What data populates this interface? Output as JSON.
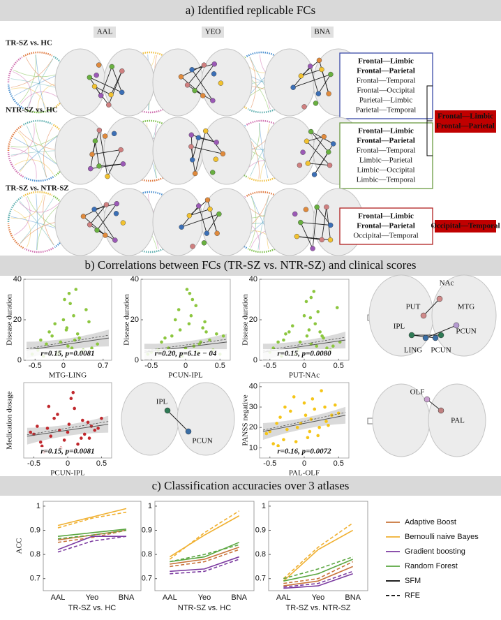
{
  "section_a": {
    "title": "a) Identified replicable FCs",
    "columns": [
      "AAL",
      "YEO",
      "BNA"
    ],
    "rows": [
      {
        "label": "TR-SZ vs. HC",
        "color": "#3a4aa8",
        "items": [
          {
            "text": "Frontal—Limbic",
            "bold": true
          },
          {
            "text": "Frontal—Parietal",
            "bold": true
          },
          {
            "text": "Frontal—Temporal",
            "bold": false
          },
          {
            "text": "Frontal—Occipital",
            "bold": false
          },
          {
            "text": "Parietal—Limbic",
            "bold": false
          },
          {
            "text": "Parietal—Temporal",
            "bold": false
          }
        ]
      },
      {
        "label": "NTR-SZ vs. HC",
        "color": "#6a9a40",
        "items": [
          {
            "text": "Frontal—Limbic",
            "bold": true
          },
          {
            "text": "Frontal—Parietal",
            "bold": true
          },
          {
            "text": "Frontal—Temporal",
            "bold": false
          },
          {
            "text": "Limbic—Parietal",
            "bold": false
          },
          {
            "text": "Limbic—Occipital",
            "bold": false
          },
          {
            "text": "Limbic—Temporal",
            "bold": false
          }
        ]
      },
      {
        "label": "TR-SZ vs. NTR-SZ",
        "color": "#b02020",
        "items": [
          {
            "text": "Frontal—Limbic",
            "bold": true
          },
          {
            "text": "Frontal—Parietal",
            "bold": true
          },
          {
            "text": "Occipital—Temporal",
            "bold": false
          }
        ]
      }
    ],
    "summaries": [
      [
        "Frontal—Limbic",
        "Frontal—Parietal"
      ],
      [
        "Occipital—Temporal"
      ]
    ]
  },
  "section_b": {
    "title": "b) Correlations between FCs (TR-SZ vs. NTR-SZ) and clinical scores",
    "charts": [
      {
        "type": "scatter",
        "ylabel": "Disease duration",
        "xlabel": "MTG-LING",
        "stat": "r=0.15, p=0.0081",
        "color": "#8cc63f",
        "xlim": [
          -0.7,
          0.85
        ],
        "ylim": [
          0,
          40
        ],
        "xticks": [
          -0.5,
          0,
          0.7
        ],
        "yticks": [
          0,
          20,
          40
        ],
        "x": [
          -0.45,
          -0.3,
          -0.2,
          -0.1,
          0,
          0.05,
          0.1,
          0.15,
          0.2,
          0.3,
          0.4,
          -0.35,
          -0.15,
          0.02,
          0.08,
          0.25,
          -0.05,
          0.12,
          0.35,
          -0.25,
          0.18,
          0.5,
          -0.4,
          0.06,
          0.22,
          -0.08,
          0.28,
          0.45,
          0.6,
          -0.55
        ],
        "y": [
          5,
          8,
          12,
          3,
          20,
          15,
          33,
          6,
          10,
          4,
          25,
          2,
          18,
          30,
          7,
          13,
          9,
          28,
          5,
          14,
          22,
          6,
          10,
          16,
          35,
          4,
          11,
          19,
          8,
          3
        ],
        "trend": {
          "x": [
            -0.65,
            0.8
          ],
          "y": [
            5,
            11
          ]
        }
      },
      {
        "type": "scatter",
        "ylabel": "Disease duration",
        "xlabel": "PCUN-IPL",
        "stat": "r=0.20, p=6.1e − 04",
        "color": "#8cc63f",
        "xlim": [
          -0.65,
          0.65
        ],
        "ylim": [
          0,
          40
        ],
        "xticks": [
          -0.5,
          0,
          0.5
        ],
        "yticks": [
          0,
          20,
          40
        ],
        "x": [
          -0.5,
          -0.35,
          -0.2,
          -0.1,
          0,
          0.05,
          0.1,
          0.2,
          0.3,
          0.4,
          0.5,
          -0.3,
          -0.15,
          0.02,
          0.12,
          0.25,
          -0.05,
          0.15,
          0.35,
          -0.25,
          0.08,
          0.45,
          -0.4,
          0.06,
          0.22,
          -0.08,
          0.28,
          0.18,
          0.55,
          -0.55
        ],
        "y": [
          4,
          9,
          12,
          25,
          6,
          18,
          30,
          8,
          14,
          5,
          3,
          11,
          20,
          35,
          7,
          16,
          2,
          27,
          10,
          6,
          22,
          13,
          5,
          33,
          9,
          15,
          19,
          4,
          12,
          3
        ],
        "trend": {
          "x": [
            -0.6,
            0.6
          ],
          "y": [
            4,
            9
          ]
        }
      },
      {
        "type": "scatter",
        "ylabel": "Disease duration",
        "xlabel": "PUT-NAc",
        "stat": "r=0.15, p=0.0080",
        "color": "#8cc63f",
        "xlim": [
          -0.65,
          0.65
        ],
        "ylim": [
          0,
          40
        ],
        "xticks": [
          -0.5,
          0,
          0.5
        ],
        "yticks": [
          0,
          20,
          40
        ],
        "x": [
          -0.45,
          -0.3,
          -0.22,
          -0.12,
          0,
          0.04,
          0.1,
          0.18,
          0.28,
          0.38,
          0.48,
          -0.33,
          -0.17,
          0.03,
          0.1,
          0.23,
          -0.06,
          0.14,
          0.33,
          -0.27,
          0.09,
          0.42,
          -0.38,
          0.07,
          0.2,
          -0.09,
          0.26,
          0.16,
          0.52,
          -0.5
        ],
        "y": [
          6,
          10,
          14,
          3,
          22,
          12,
          31,
          7,
          11,
          5,
          26,
          2,
          17,
          29,
          8,
          14,
          9,
          34,
          6,
          13,
          21,
          7,
          9,
          15,
          24,
          5,
          12,
          18,
          9,
          4
        ],
        "trend": {
          "x": [
            -0.6,
            0.6
          ],
          "y": [
            4,
            10
          ]
        }
      },
      {
        "type": "scatter",
        "ylabel": "Medication dosage",
        "xlabel": "PCUN-IPL",
        "stat": "r=0.15, p=0.0081",
        "color": "#c0282d",
        "xlim": [
          -0.65,
          0.65
        ],
        "ylim": [
          0,
          38
        ],
        "xticks": [
          -0.5,
          0,
          0.5
        ],
        "yticks": [],
        "x": [
          -0.5,
          -0.4,
          -0.3,
          -0.2,
          -0.1,
          0,
          0.1,
          0.2,
          0.3,
          0.4,
          -0.45,
          -0.35,
          -0.25,
          -0.15,
          -0.05,
          0.05,
          0.15,
          0.25,
          0.35,
          0.5,
          -0.55,
          -0.28,
          -0.12,
          0.02,
          0.12,
          0.22,
          0.32,
          -0.38,
          0.08,
          0.45
        ],
        "y": [
          12,
          8,
          15,
          20,
          5,
          13,
          25,
          10,
          18,
          14,
          16,
          3,
          11,
          22,
          9,
          30,
          7,
          12,
          16,
          20,
          13,
          26,
          14,
          17,
          4,
          19,
          10,
          6,
          33,
          15
        ],
        "trend": {
          "x": [
            -0.6,
            0.6
          ],
          "y": [
            11,
            17
          ]
        }
      },
      {
        "type": "scatter",
        "ylabel": "PANSS negative",
        "xlabel": "PAL-OLF",
        "stat": "r=0.16, p=0.0072",
        "color": "#f5c518",
        "xlim": [
          -0.65,
          0.65
        ],
        "ylim": [
          5,
          42
        ],
        "xticks": [
          -0.5,
          0,
          0.5
        ],
        "yticks": [
          10,
          20,
          30,
          40
        ],
        "x": [
          -0.5,
          -0.4,
          -0.3,
          -0.2,
          -0.1,
          0,
          0.1,
          0.2,
          0.3,
          0.4,
          -0.45,
          -0.35,
          -0.25,
          -0.15,
          -0.05,
          0.05,
          0.15,
          0.25,
          0.35,
          0.5,
          -0.55,
          -0.28,
          -0.12,
          0.02,
          0.12,
          0.22,
          0.32,
          -0.38,
          0.08,
          0.45
        ],
        "y": [
          18,
          22,
          14,
          28,
          20,
          32,
          24,
          16,
          30,
          26,
          12,
          25,
          19,
          35,
          22,
          15,
          29,
          38,
          21,
          27,
          17,
          30,
          13,
          26,
          34,
          20,
          23,
          11,
          18,
          31
        ],
        "trend": {
          "x": [
            -0.6,
            0.6
          ],
          "y": [
            18,
            26
          ]
        }
      }
    ],
    "brain_labels": [
      [
        "PUT",
        "NAc",
        "MTG",
        "IPL",
        "LING",
        "PCUN",
        "PCUN"
      ],
      [
        "IPL",
        "PCUN"
      ],
      [
        "OLF",
        "PAL"
      ]
    ]
  },
  "section_c": {
    "title": "c) Classification accuracies over 3 atlases",
    "legend": [
      {
        "name": "Adaptive Boost",
        "color": "#c8743a"
      },
      {
        "name": "Bernoulli naive Bayes",
        "color": "#f0b030"
      },
      {
        "name": "Gradient boosting",
        "color": "#7b3aa0"
      },
      {
        "name": "Random Forest",
        "color": "#5aa640"
      },
      {
        "name": "SFM",
        "color": "#000000",
        "dashed": false
      },
      {
        "name": "RFE",
        "color": "#000000",
        "dashed": true
      }
    ],
    "charts": [
      {
        "type": "line",
        "ylabel": "ACC",
        "xlabel": "TR-SZ vs. HC",
        "categories": [
          "AAL",
          "Yeo",
          "BNA"
        ],
        "ylim": [
          0.65,
          1.02
        ],
        "yticks": [
          0.7,
          0.8,
          0.9,
          1
        ],
        "series": [
          {
            "name": "Adaptive Boost",
            "method": "SFM",
            "color": "#c8743a",
            "dashed": false,
            "values": [
              0.86,
              0.88,
              0.9
            ]
          },
          {
            "name": "Adaptive Boost",
            "method": "RFE",
            "color": "#c8743a",
            "dashed": true,
            "values": [
              0.85,
              0.87,
              0.9
            ]
          },
          {
            "name": "Bernoulli naive Bayes",
            "method": "SFM",
            "color": "#f0b030",
            "dashed": false,
            "values": [
              0.92,
              0.955,
              0.99
            ]
          },
          {
            "name": "Bernoulli naive Bayes",
            "method": "RFE",
            "color": "#f0b030",
            "dashed": true,
            "values": [
              0.91,
              0.95,
              0.975
            ]
          },
          {
            "name": "Gradient boosting",
            "method": "SFM",
            "color": "#7b3aa0",
            "dashed": false,
            "values": [
              0.82,
              0.875,
              0.875
            ]
          },
          {
            "name": "Gradient boosting",
            "method": "RFE",
            "color": "#7b3aa0",
            "dashed": true,
            "values": [
              0.81,
              0.855,
              0.875
            ]
          },
          {
            "name": "Random Forest",
            "method": "SFM",
            "color": "#5aa640",
            "dashed": false,
            "values": [
              0.875,
              0.89,
              0.905
            ]
          },
          {
            "name": "Random Forest",
            "method": "RFE",
            "color": "#5aa640",
            "dashed": true,
            "values": [
              0.865,
              0.88,
              0.9
            ]
          }
        ]
      },
      {
        "type": "line",
        "xlabel": "NTR-SZ vs. HC",
        "categories": [
          "AAL",
          "Yeo",
          "BNA"
        ],
        "ylim": [
          0.65,
          1.02
        ],
        "yticks": [
          0.7,
          0.8,
          0.9,
          1
        ],
        "series": [
          {
            "name": "Adaptive Boost",
            "method": "SFM",
            "color": "#c8743a",
            "dashed": false,
            "values": [
              0.76,
              0.78,
              0.83
            ]
          },
          {
            "name": "Adaptive Boost",
            "method": "RFE",
            "color": "#c8743a",
            "dashed": true,
            "values": [
              0.75,
              0.77,
              0.82
            ]
          },
          {
            "name": "Bernoulli naive Bayes",
            "method": "SFM",
            "color": "#f0b030",
            "dashed": false,
            "values": [
              0.79,
              0.88,
              0.96
            ]
          },
          {
            "name": "Bernoulli naive Bayes",
            "method": "RFE",
            "color": "#f0b030",
            "dashed": true,
            "values": [
              0.78,
              0.89,
              0.98
            ]
          },
          {
            "name": "Gradient boosting",
            "method": "SFM",
            "color": "#7b3aa0",
            "dashed": false,
            "values": [
              0.73,
              0.74,
              0.79
            ]
          },
          {
            "name": "Gradient boosting",
            "method": "RFE",
            "color": "#7b3aa0",
            "dashed": true,
            "values": [
              0.72,
              0.73,
              0.78
            ]
          },
          {
            "name": "Random Forest",
            "method": "SFM",
            "color": "#5aa640",
            "dashed": false,
            "values": [
              0.77,
              0.79,
              0.85
            ]
          },
          {
            "name": "Random Forest",
            "method": "RFE",
            "color": "#5aa640",
            "dashed": true,
            "values": [
              0.77,
              0.8,
              0.84
            ]
          }
        ]
      },
      {
        "type": "line",
        "xlabel": "TR-SZ vs. NTR-SZ",
        "categories": [
          "AAL",
          "Yeo",
          "BNA"
        ],
        "ylim": [
          0.65,
          1.02
        ],
        "yticks": [
          0.7,
          0.8,
          0.9,
          1
        ],
        "series": [
          {
            "name": "Adaptive Boost",
            "method": "SFM",
            "color": "#c8743a",
            "dashed": false,
            "values": [
              0.67,
              0.69,
              0.75
            ]
          },
          {
            "name": "Adaptive Boost",
            "method": "RFE",
            "color": "#c8743a",
            "dashed": true,
            "values": [
              0.68,
              0.7,
              0.77
            ]
          },
          {
            "name": "Bernoulli naive Bayes",
            "method": "SFM",
            "color": "#f0b030",
            "dashed": false,
            "values": [
              0.69,
              0.82,
              0.9
            ]
          },
          {
            "name": "Bernoulli naive Bayes",
            "method": "RFE",
            "color": "#f0b030",
            "dashed": true,
            "values": [
              0.7,
              0.83,
              0.93
            ]
          },
          {
            "name": "Gradient boosting",
            "method": "SFM",
            "color": "#7b3aa0",
            "dashed": false,
            "values": [
              0.66,
              0.67,
              0.72
            ]
          },
          {
            "name": "Gradient boosting",
            "method": "RFE",
            "color": "#7b3aa0",
            "dashed": true,
            "values": [
              0.665,
              0.68,
              0.73
            ]
          },
          {
            "name": "Random Forest",
            "method": "SFM",
            "color": "#5aa640",
            "dashed": false,
            "values": [
              0.69,
              0.72,
              0.78
            ]
          },
          {
            "name": "Random Forest",
            "method": "RFE",
            "color": "#5aa640",
            "dashed": true,
            "values": [
              0.7,
              0.74,
              0.79
            ]
          }
        ]
      }
    ]
  }
}
